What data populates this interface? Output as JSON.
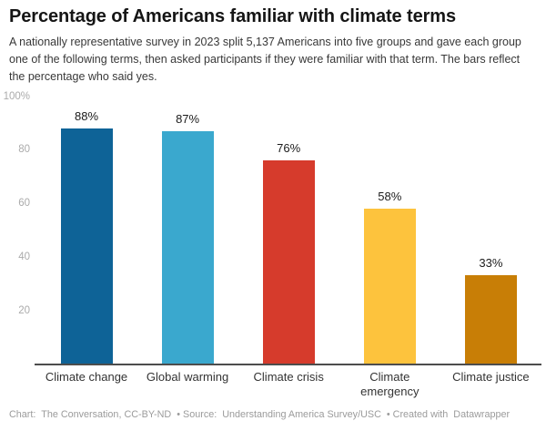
{
  "header": {
    "title": "Percentage of Americans familiar with climate terms",
    "description": "A nationally representative survey in 2023 split 5,137 Americans into five groups and gave each group one of the following terms, then asked participants if they were familiar with that term. The bars reflect the percentage who said yes."
  },
  "chart_data": {
    "type": "bar",
    "title": "Percentage of Americans familiar with climate terms",
    "categories": [
      "Climate change",
      "Global warming",
      "Climate crisis",
      "Climate emergency",
      "Climate justice"
    ],
    "values": [
      88,
      87,
      76,
      58,
      33
    ],
    "value_labels": [
      "88%",
      "87%",
      "76%",
      "58%",
      "33%"
    ],
    "bar_colors": [
      "#0e6397",
      "#3aa8ce",
      "#d63b2c",
      "#fdc33d",
      "#c87e06"
    ],
    "xlabel": "",
    "ylabel": "",
    "ylim": [
      0,
      100
    ],
    "y_ticks": [
      20,
      40,
      60,
      80,
      100
    ],
    "y_tick_labels": [
      "20",
      "40",
      "60",
      "80",
      "100%"
    ],
    "grid": false,
    "legend": false,
    "axis_color": "#4d4d4d"
  },
  "footer": {
    "chart_label": "Chart: ",
    "chart_credit": "The Conversation, CC-BY-ND",
    "sep1": " • Source: ",
    "source_credit": "Understanding America Survey/USC",
    "sep2": " • Created with ",
    "tool_credit": "Datawrapper"
  }
}
